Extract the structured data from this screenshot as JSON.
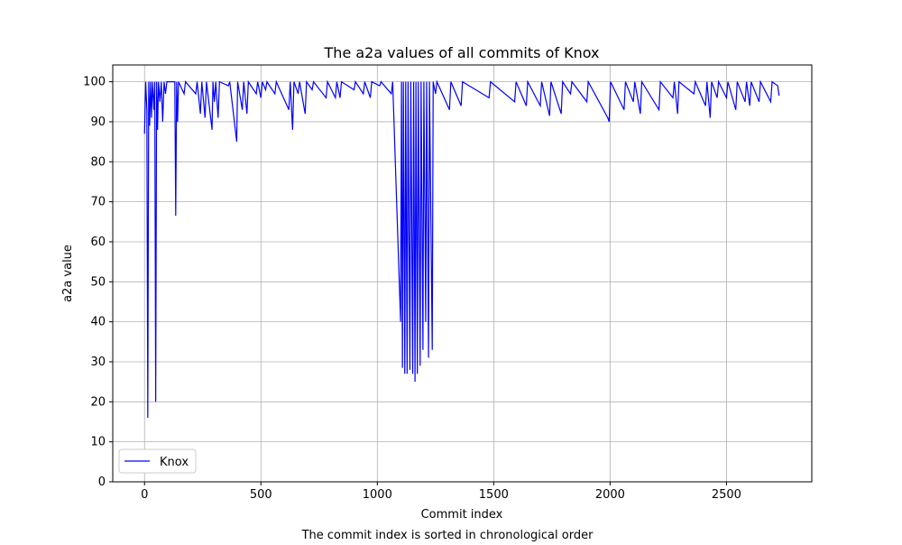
{
  "chart_data": {
    "type": "line",
    "title": "The a2a values of all commits of Knox",
    "x_label": "Commit index",
    "y_label": "a2a value",
    "caption": "The commit index is sorted in chronological order",
    "x": [
      0,
      5,
      10,
      14,
      18,
      22,
      26,
      30,
      34,
      40,
      44,
      48,
      52,
      56,
      60,
      66,
      72,
      78,
      84,
      90,
      96,
      130,
      134,
      138,
      142,
      146,
      170,
      176,
      220,
      226,
      240,
      246,
      260,
      266,
      290,
      294,
      300,
      306,
      316,
      322,
      360,
      366,
      396,
      400,
      420,
      426,
      440,
      446,
      480,
      486,
      500,
      506,
      520,
      526,
      560,
      566,
      620,
      626,
      636,
      642,
      660,
      666,
      690,
      696,
      720,
      726,
      780,
      786,
      820,
      826,
      840,
      846,
      900,
      906,
      940,
      946,
      970,
      976,
      1010,
      1016,
      1060,
      1066,
      1100,
      1104,
      1108,
      1112,
      1118,
      1122,
      1128,
      1132,
      1140,
      1144,
      1152,
      1156,
      1162,
      1166,
      1172,
      1176,
      1184,
      1188,
      1196,
      1200,
      1208,
      1212,
      1220,
      1224,
      1236,
      1240,
      1250,
      1256,
      1310,
      1316,
      1360,
      1366,
      1480,
      1486,
      1590,
      1596,
      1640,
      1646,
      1700,
      1706,
      1740,
      1746,
      1790,
      1796,
      1830,
      1836,
      1900,
      1906,
      1990,
      1996,
      2002,
      2060,
      2066,
      2100,
      2106,
      2130,
      2136,
      2210,
      2216,
      2270,
      2276,
      2290,
      2296,
      2360,
      2366,
      2410,
      2416,
      2430,
      2436,
      2460,
      2466,
      2500,
      2506,
      2540,
      2546,
      2580,
      2586,
      2600,
      2606,
      2640,
      2646,
      2690,
      2696,
      2720,
      2726
    ],
    "series": [
      {
        "name": "Knox",
        "color": "#0000ff",
        "values": [
          87,
          100,
          93,
          16,
          100,
          89,
          100,
          91,
          100,
          93,
          100,
          20,
          100,
          88,
          100,
          95,
          100,
          90,
          100,
          97,
          100,
          100,
          66.5,
          100,
          90,
          100,
          97,
          100,
          97,
          100,
          92,
          100,
          91,
          100,
          88,
          100,
          95,
          100,
          91,
          100,
          99,
          100,
          85,
          100,
          93,
          100,
          92,
          100,
          97,
          100,
          96,
          100,
          98,
          100,
          97,
          100,
          93,
          100,
          88,
          100,
          97,
          100,
          92,
          100,
          98,
          100,
          96,
          100,
          96,
          100,
          96,
          100,
          98,
          100,
          97,
          100,
          96,
          100,
          99,
          100,
          97,
          100,
          40,
          100,
          28.5,
          100,
          27,
          100,
          27,
          100,
          28,
          100,
          27,
          100,
          25,
          100,
          27,
          100,
          29,
          100,
          33,
          100,
          40,
          100,
          31,
          100,
          33,
          100,
          97,
          100,
          93,
          100,
          94,
          100,
          96,
          100,
          95,
          100,
          94,
          100,
          94,
          100,
          91.5,
          100,
          92,
          100,
          97,
          100,
          95,
          100,
          91,
          90,
          100,
          93,
          100,
          95,
          100,
          92,
          100,
          93,
          100,
          96,
          100,
          92,
          100,
          97,
          100,
          94,
          100,
          91,
          100,
          96,
          100,
          96,
          100,
          93,
          100,
          95,
          100,
          94,
          100,
          95,
          100,
          95,
          100,
          99,
          96.5
        ]
      }
    ],
    "xlim": [
      -136.5,
      2866.5
    ],
    "ylim": [
      0,
      104.2
    ],
    "xticks": [
      0,
      500,
      1000,
      1500,
      2000,
      2500
    ],
    "yticks": [
      0,
      10,
      20,
      30,
      40,
      50,
      60,
      70,
      80,
      90,
      100
    ],
    "grid": true,
    "legend": "lower left"
  }
}
